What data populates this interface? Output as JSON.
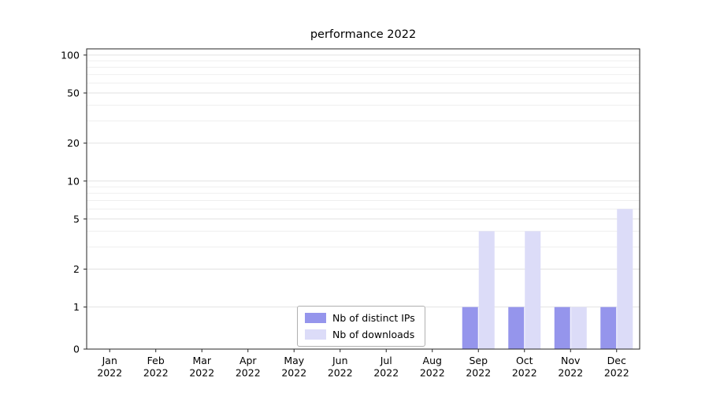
{
  "chart_data": {
    "type": "bar",
    "title": "performance 2022",
    "categories": [
      "Jan",
      "Feb",
      "Mar",
      "Apr",
      "May",
      "Jun",
      "Jul",
      "Aug",
      "Sep",
      "Oct",
      "Nov",
      "Dec"
    ],
    "year_label": "2022",
    "series": [
      {
        "name": "Nb of distinct IPs",
        "color": "#9595ec",
        "values": [
          0,
          0,
          0,
          0,
          0,
          0,
          0,
          0,
          1,
          1,
          1,
          1
        ]
      },
      {
        "name": "Nb of downloads",
        "color": "#dcdcf8",
        "values": [
          0,
          0,
          0,
          0,
          0,
          0,
          0,
          0,
          4,
          4,
          1,
          6
        ]
      }
    ],
    "yscale": "symlog",
    "y_major_ticks": [
      0,
      1,
      2,
      5,
      10,
      20,
      50,
      100
    ],
    "y_minor_ticks": [
      3,
      4,
      6,
      7,
      8,
      9,
      30,
      40,
      60,
      70,
      80,
      90
    ],
    "ylim": [
      0,
      112
    ],
    "xlabel": "",
    "ylabel": "",
    "grid": "horizontal",
    "legend_position": "lower center"
  },
  "colors": {
    "spine": "#262626",
    "grid_major": "#e2e2e2",
    "grid_minor": "#efefef",
    "tick_text": "#000000"
  }
}
